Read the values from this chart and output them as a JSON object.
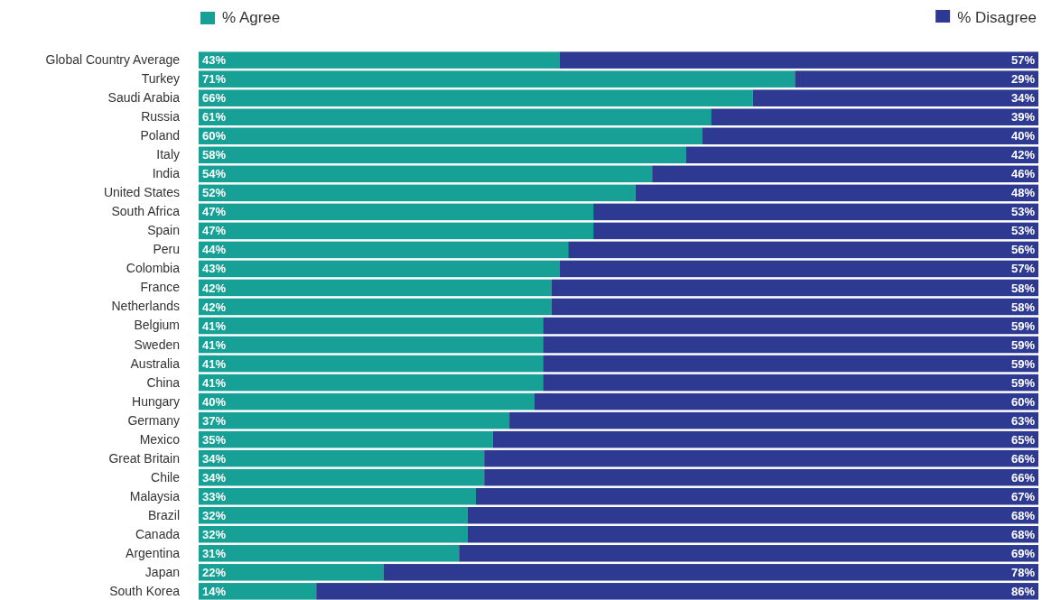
{
  "chart_data": {
    "type": "bar",
    "orientation": "horizontal",
    "stacked": true,
    "legend": "top",
    "xlim": [
      0,
      100
    ],
    "tick_labels": "y",
    "categories": [
      "Global Country Average",
      "Turkey",
      "Saudi Arabia",
      "Russia",
      "Poland",
      "Italy",
      "India",
      "United States",
      "South Africa",
      "Spain",
      "Peru",
      "Colombia",
      "France",
      "Netherlands",
      "Belgium",
      "Sweden",
      "Australia",
      "China",
      "Hungary",
      "Germany",
      "Mexico",
      "Great Britain",
      "Chile",
      "Malaysia",
      "Brazil",
      "Canada",
      "Argentina",
      "Japan",
      "South Korea"
    ],
    "series": [
      {
        "name": "% Agree",
        "color": "#17a196",
        "values": [
          43,
          71,
          66,
          61,
          60,
          58,
          54,
          52,
          47,
          47,
          44,
          43,
          42,
          42,
          41,
          41,
          41,
          41,
          40,
          37,
          35,
          34,
          34,
          33,
          32,
          32,
          31,
          22,
          14
        ],
        "value_labels": [
          "43%",
          "71%",
          "66%",
          "61%",
          "60%",
          "58%",
          "54%",
          "52%",
          "47%",
          "47%",
          "44%",
          "43%",
          "42%",
          "42%",
          "41%",
          "41%",
          "41%",
          "41%",
          "40%",
          "37%",
          "35%",
          "34%",
          "34%",
          "33%",
          "32%",
          "32%",
          "31%",
          "22%",
          "14%"
        ]
      },
      {
        "name": "% Disagree",
        "color": "#2e3a92",
        "values": [
          57,
          29,
          34,
          39,
          40,
          42,
          46,
          48,
          53,
          53,
          56,
          57,
          58,
          58,
          59,
          59,
          59,
          59,
          60,
          63,
          65,
          66,
          66,
          67,
          68,
          68,
          69,
          78,
          86
        ],
        "value_labels": [
          "57%",
          "29%",
          "34%",
          "39%",
          "40%",
          "42%",
          "46%",
          "48%",
          "53%",
          "53%",
          "56%",
          "57%",
          "58%",
          "58%",
          "59%",
          "59%",
          "59%",
          "59%",
          "60%",
          "63%",
          "65%",
          "66%",
          "66%",
          "67%",
          "68%",
          "68%",
          "69%",
          "78%",
          "86%"
        ]
      }
    ]
  }
}
